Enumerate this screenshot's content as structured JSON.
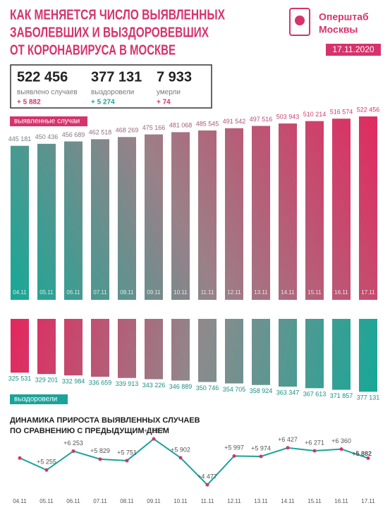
{
  "header": {
    "title": [
      "КАК МЕНЯЕТСЯ ЧИСЛО ВЫЯВЛЕННЫХ",
      "ЗАБОЛЕВШИХ И ВЫЗДОРОВЕВШИХ",
      "ОТ КОРОНАВИРУСА В МОСКВЕ"
    ],
    "logo": [
      "Оперштаб",
      "Москвы"
    ],
    "date": "17.11.2020"
  },
  "stats": [
    {
      "value": "522 456",
      "label": "выявлено случаев",
      "change": "+ 5 882"
    },
    {
      "value": "377 131",
      "label": "выздоровели",
      "change": "+ 5 274"
    },
    {
      "value": "7 933",
      "label": "умерли",
      "change": "+ 74"
    }
  ],
  "chart_data": [
    {
      "type": "bar",
      "direction": "up",
      "label": "выявленные случаи",
      "categories": [
        "04.11",
        "05.11",
        "06.11",
        "07.11",
        "08.11",
        "09.11",
        "10.11",
        "11.11",
        "12.11",
        "13.11",
        "14.11",
        "15.11",
        "16.11",
        "17.11"
      ],
      "values": [
        445181,
        450436,
        456689,
        462518,
        468269,
        475166,
        481068,
        485545,
        491542,
        497516,
        503943,
        510214,
        516574,
        522456
      ],
      "value_labels": [
        "445 181",
        "450 436",
        "456 689",
        "462 518",
        "468 269",
        "475 166",
        "481 068",
        "485 545",
        "491 542",
        "497 516",
        "503 943",
        "510 214",
        "516 574",
        "522 456"
      ],
      "ylim": [
        40000,
        530000
      ]
    },
    {
      "type": "bar",
      "direction": "down",
      "label": "выздоровели",
      "categories": [
        "04.11",
        "05.11",
        "06.11",
        "07.11",
        "08.11",
        "09.11",
        "10.11",
        "11.11",
        "12.11",
        "13.11",
        "14.11",
        "15.11",
        "16.11",
        "17.11"
      ],
      "values": [
        325531,
        329201,
        332984,
        336659,
        339913,
        343226,
        346889,
        350746,
        354705,
        358924,
        363347,
        367613,
        371857,
        377131
      ],
      "value_labels": [
        "325 531",
        "329 201",
        "332 984",
        "336 659",
        "339 913",
        "343 226",
        "346 889",
        "350 746",
        "354 705",
        "358 924",
        "363 347",
        "367 613",
        "371 857",
        "377 131"
      ],
      "ylim": [
        180000,
        390000
      ]
    },
    {
      "type": "line",
      "title": [
        "ДИНАМИКА ПРИРОСТА ВЫЯВЛЕННЫХ СЛУЧАЕВ",
        "ПО СРАВНЕНИЮ С ПРЕДЫДУЩИМ ДНЕМ"
      ],
      "categories": [
        "04.11",
        "05.11",
        "06.11",
        "07.11",
        "08.11",
        "09.11",
        "10.11",
        "11.11",
        "12.11",
        "13.11",
        "14.11",
        "15.11",
        "16.11",
        "17.11"
      ],
      "values": [
        5890,
        5255,
        6253,
        5829,
        5751,
        6897,
        5902,
        4477,
        5997,
        5974,
        6427,
        6271,
        6360,
        5882
      ],
      "value_labels": [
        null,
        "+5 255",
        "+6 253",
        "+5 829",
        "+5 751",
        "+6 897",
        "+5 902",
        "+4 477",
        "+5 997",
        "+5 974",
        "+6 427",
        "+6 271",
        "+6 360",
        "+5 882"
      ],
      "ylim": [
        4000,
        7200
      ],
      "color": "#1aa39a"
    }
  ]
}
